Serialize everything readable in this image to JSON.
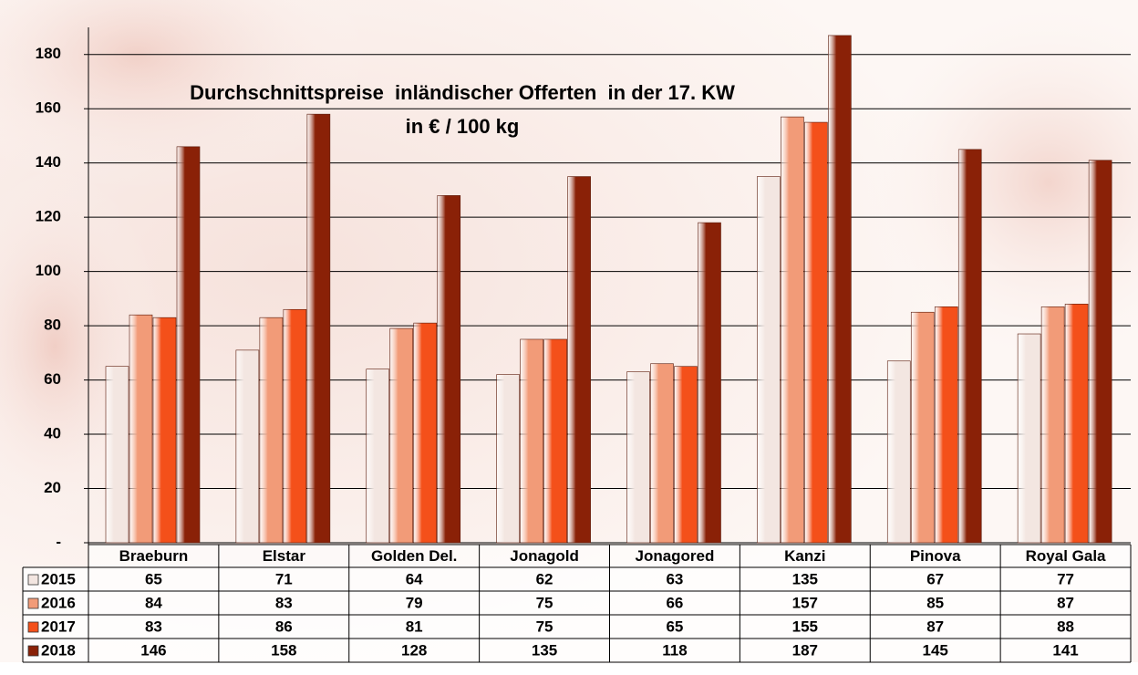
{
  "chart_data": {
    "type": "bar",
    "title": "Durchschnittspreise  inländischer Offerten  in der 17. KW",
    "subtitle": "in € / 100 kg",
    "categories": [
      "Braeburn",
      "Elstar",
      "Golden Del.",
      "Jonagold",
      "Jonagored",
      "Kanzi",
      "Pinova",
      "Royal Gala"
    ],
    "series": [
      {
        "name": "2015",
        "color": "#f3e6e1",
        "values": [
          65,
          71,
          64,
          62,
          63,
          135,
          67,
          77
        ]
      },
      {
        "name": "2016",
        "color": "#f29b78",
        "values": [
          84,
          83,
          79,
          75,
          66,
          157,
          85,
          87
        ]
      },
      {
        "name": "2017",
        "color": "#f4501a",
        "values": [
          83,
          86,
          81,
          75,
          65,
          155,
          87,
          88
        ]
      },
      {
        "name": "2018",
        "color": "#8a2107",
        "values": [
          146,
          158,
          128,
          135,
          118,
          187,
          145,
          141
        ]
      }
    ],
    "ylim": [
      0,
      190
    ],
    "yticks": [
      {
        "value": 0,
        "label": "-"
      },
      20,
      40,
      60,
      80,
      100,
      120,
      140,
      160,
      180
    ],
    "grid": true
  }
}
